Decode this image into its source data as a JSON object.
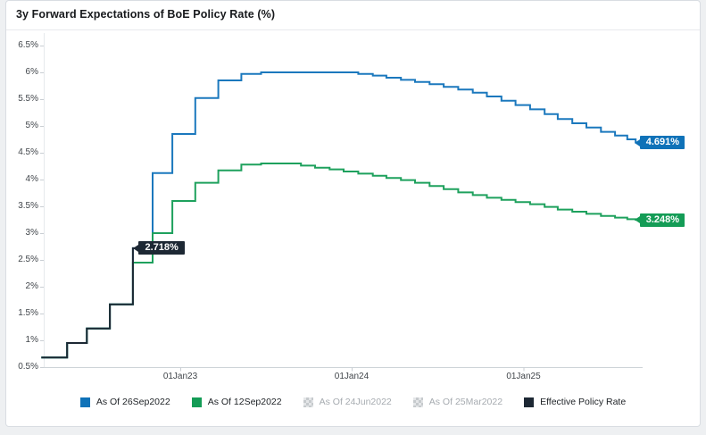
{
  "page": {
    "background": "#eef0f2"
  },
  "header": {
    "title": "3y Forward Expectations of BoE Policy Rate (%)"
  },
  "chart_data": {
    "type": "line",
    "title": "3y Forward Expectations of BoE Policy Rate (%)",
    "style": "step-after",
    "grid": false,
    "legend_position": "bottom",
    "y_axis": {
      "unit": "%",
      "min": 0.5,
      "max": 6.5,
      "tick_step": 0.5,
      "tick_labels": [
        "6.5%",
        "6%",
        "5.5%",
        "5%",
        "4.5%",
        "4%",
        "3.5%",
        "3%",
        "2.5%",
        "2%",
        "1.5%",
        "1%",
        "0.5%"
      ],
      "tick_values": [
        6.5,
        6,
        5.5,
        5,
        4.5,
        4,
        3.5,
        3,
        2.5,
        2,
        1.5,
        1,
        0.5
      ]
    },
    "x_axis": {
      "tick_labels": [
        "01Jan23",
        "01Jan24",
        "01Jan25"
      ],
      "tick_dates": [
        "2023-01-01",
        "2024-01-01",
        "2025-01-01"
      ]
    },
    "series": [
      {
        "name": "As Of 26Sep2022",
        "color": "#1b78bd",
        "label_bg": "#0f72b8",
        "end_label": "4.691%",
        "end_value": 4.691,
        "points": [
          [
            "2022-03-11",
            0.68
          ],
          [
            "2022-05-05",
            0.95
          ],
          [
            "2022-06-16",
            1.22
          ],
          [
            "2022-08-04",
            1.67
          ],
          [
            "2022-09-22",
            2.718
          ],
          [
            "2022-11-03",
            4.12
          ],
          [
            "2022-12-15",
            4.85
          ],
          [
            "2023-02-02",
            5.52
          ],
          [
            "2023-03-23",
            5.85
          ],
          [
            "2023-05-11",
            5.97
          ],
          [
            "2023-06-22",
            6.0
          ],
          [
            "2024-01-15",
            5.97
          ],
          [
            "2024-02-15",
            5.94
          ],
          [
            "2024-03-15",
            5.9
          ],
          [
            "2024-04-15",
            5.86
          ],
          [
            "2024-05-15",
            5.82
          ],
          [
            "2024-06-15",
            5.78
          ],
          [
            "2024-07-15",
            5.73
          ],
          [
            "2024-08-15",
            5.68
          ],
          [
            "2024-09-15",
            5.62
          ],
          [
            "2024-10-15",
            5.55
          ],
          [
            "2024-11-15",
            5.47
          ],
          [
            "2024-12-15",
            5.39
          ],
          [
            "2025-01-15",
            5.31
          ],
          [
            "2025-02-15",
            5.22
          ],
          [
            "2025-03-15",
            5.13
          ],
          [
            "2025-04-15",
            5.05
          ],
          [
            "2025-05-15",
            4.97
          ],
          [
            "2025-06-15",
            4.89
          ],
          [
            "2025-07-15",
            4.82
          ],
          [
            "2025-08-10",
            4.75
          ],
          [
            "2025-08-28",
            4.691
          ]
        ]
      },
      {
        "name": "As Of 12Sep2022",
        "color": "#1ea15d",
        "label_bg": "#149c56",
        "end_label": "3.248%",
        "end_value": 3.248,
        "points": [
          [
            "2022-03-11",
            0.68
          ],
          [
            "2022-05-05",
            0.95
          ],
          [
            "2022-06-16",
            1.22
          ],
          [
            "2022-08-04",
            1.67
          ],
          [
            "2022-09-22",
            2.45
          ],
          [
            "2022-11-03",
            3.0
          ],
          [
            "2022-12-15",
            3.6
          ],
          [
            "2023-02-02",
            3.94
          ],
          [
            "2023-03-23",
            4.17
          ],
          [
            "2023-05-11",
            4.28
          ],
          [
            "2023-06-22",
            4.3
          ],
          [
            "2023-09-15",
            4.26
          ],
          [
            "2023-10-15",
            4.22
          ],
          [
            "2023-11-15",
            4.19
          ],
          [
            "2023-12-15",
            4.15
          ],
          [
            "2024-01-15",
            4.11
          ],
          [
            "2024-02-15",
            4.07
          ],
          [
            "2024-03-15",
            4.03
          ],
          [
            "2024-04-15",
            3.99
          ],
          [
            "2024-05-15",
            3.94
          ],
          [
            "2024-06-15",
            3.88
          ],
          [
            "2024-07-15",
            3.82
          ],
          [
            "2024-08-15",
            3.76
          ],
          [
            "2024-09-15",
            3.71
          ],
          [
            "2024-10-15",
            3.66
          ],
          [
            "2024-11-15",
            3.62
          ],
          [
            "2024-12-15",
            3.58
          ],
          [
            "2025-01-15",
            3.54
          ],
          [
            "2025-02-15",
            3.49
          ],
          [
            "2025-03-15",
            3.44
          ],
          [
            "2025-04-15",
            3.4
          ],
          [
            "2025-05-15",
            3.36
          ],
          [
            "2025-06-15",
            3.32
          ],
          [
            "2025-07-15",
            3.29
          ],
          [
            "2025-08-10",
            3.26
          ],
          [
            "2025-08-28",
            3.248
          ]
        ]
      },
      {
        "name": "Effective Policy Rate",
        "color": "#1d2834",
        "label_bg": "#1d2834",
        "end_label": "2.718%",
        "end_value": 2.718,
        "points": [
          [
            "2022-03-11",
            0.68
          ],
          [
            "2022-05-05",
            0.95
          ],
          [
            "2022-06-16",
            1.22
          ],
          [
            "2022-08-04",
            1.67
          ],
          [
            "2022-09-22",
            2.718
          ],
          [
            "2022-09-26",
            2.718
          ]
        ]
      }
    ]
  },
  "legend": {
    "items": [
      {
        "label": "As Of 26Sep2022",
        "swatch_color": "#0f72b8",
        "enabled": true
      },
      {
        "label": "As Of 12Sep2022",
        "swatch_color": "#149c56",
        "enabled": true
      },
      {
        "label": "As Of 24Jun2022",
        "swatch_color": "checker",
        "enabled": false
      },
      {
        "label": "As Of 25Mar2022",
        "swatch_color": "checker",
        "enabled": false
      },
      {
        "label": "Effective Policy Rate",
        "swatch_color": "#1d2834",
        "enabled": true
      }
    ]
  },
  "colors": {
    "accent_blue": "#0f72b8",
    "accent_green": "#149c56",
    "accent_dark": "#1d2834",
    "axis_line": "#cdd3d8",
    "tick_mark": "#c9ced3"
  }
}
